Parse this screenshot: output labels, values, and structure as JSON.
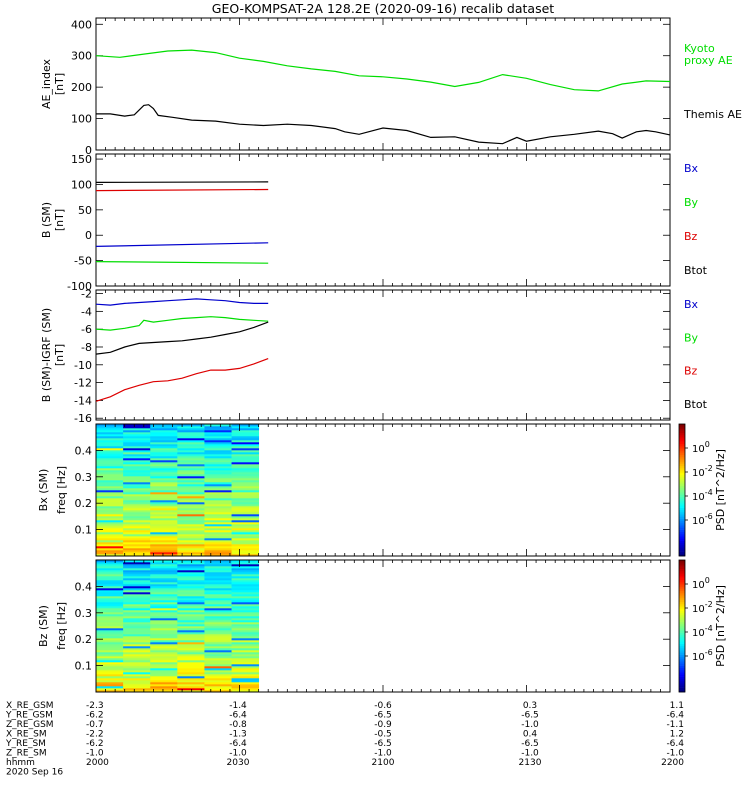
{
  "title": "GEO-KOMPSAT-2A 128.2E (2020-09-16) recalib dataset",
  "time_axis": {
    "tick_labels": [
      "2000",
      "2030",
      "2100",
      "2130",
      "2200"
    ]
  },
  "chart_data": [
    {
      "id": "ae",
      "type": "line",
      "ylabel": [
        "AE_index",
        "[nT]"
      ],
      "ylim": [
        0,
        420
      ],
      "yticks": [
        0,
        100,
        200,
        300,
        400
      ],
      "xlim": [
        "20:00",
        "22:00"
      ],
      "series": [
        {
          "name": "Kyoto proxy AE",
          "label_lines": [
            "Kyoto",
            "proxy AE"
          ],
          "color": "#00dd00",
          "x": [
            0,
            5,
            10,
            15,
            20,
            25,
            30,
            35,
            40,
            45,
            50,
            55,
            60,
            65,
            70,
            75,
            80,
            85,
            90,
            95,
            100,
            105,
            110,
            115,
            120
          ],
          "y": [
            300,
            295,
            305,
            315,
            318,
            310,
            292,
            282,
            268,
            258,
            250,
            236,
            233,
            226,
            216,
            202,
            215,
            240,
            228,
            208,
            192,
            188,
            210,
            220,
            218
          ]
        },
        {
          "name": "Themis AE",
          "label_lines": [
            "Themis AE"
          ],
          "color": "#000000",
          "x": [
            0,
            3,
            6,
            8,
            10,
            11,
            12,
            13,
            16,
            20,
            25,
            30,
            35,
            40,
            45,
            50,
            52,
            55,
            60,
            65,
            70,
            75,
            80,
            85,
            88,
            90,
            95,
            100,
            105,
            108,
            110,
            113,
            115,
            117,
            120
          ],
          "y": [
            115,
            115,
            108,
            112,
            142,
            144,
            132,
            110,
            104,
            95,
            92,
            82,
            78,
            82,
            78,
            68,
            58,
            50,
            70,
            62,
            40,
            42,
            25,
            20,
            40,
            28,
            42,
            50,
            60,
            52,
            38,
            58,
            62,
            58,
            48
          ]
        }
      ]
    },
    {
      "id": "b_sm",
      "type": "line",
      "ylabel": [
        "B (SM)",
        "[nT]"
      ],
      "ylim": [
        -100,
        160
      ],
      "yticks": [
        -100,
        -50,
        0,
        50,
        100,
        150
      ],
      "xlim": [
        "20:00",
        "22:00"
      ],
      "series": [
        {
          "name": "Bx",
          "color": "#0000cc",
          "x": [
            0,
            36
          ],
          "y": [
            -22,
            -15
          ]
        },
        {
          "name": "By",
          "color": "#00dd00",
          "x": [
            0,
            36
          ],
          "y": [
            -52,
            -55
          ]
        },
        {
          "name": "Bz",
          "color": "#dd0000",
          "x": [
            0,
            36
          ],
          "y": [
            88,
            90
          ]
        },
        {
          "name": "Btot",
          "color": "#000000",
          "x": [
            0,
            36
          ],
          "y": [
            104,
            105
          ]
        }
      ]
    },
    {
      "id": "b_sm_igrf",
      "type": "line",
      "ylabel": [
        "B (SM)-IGRF (SM)",
        "[nT]"
      ],
      "ylim": [
        -16.2,
        -1.6
      ],
      "yticks": [
        -16,
        -14,
        -12,
        -10,
        -8,
        -6,
        -4,
        -2
      ],
      "xlim": [
        "20:00",
        "22:00"
      ],
      "series": [
        {
          "name": "Bx",
          "color": "#0000cc",
          "x": [
            0,
            3,
            6,
            9,
            12,
            15,
            18,
            21,
            24,
            27,
            30,
            33,
            36
          ],
          "y": [
            -3.2,
            -3.3,
            -3.1,
            -3.0,
            -2.9,
            -2.8,
            -2.7,
            -2.6,
            -2.7,
            -2.8,
            -3.0,
            -3.1,
            -3.1
          ]
        },
        {
          "name": "By",
          "color": "#00dd00",
          "x": [
            0,
            3,
            6,
            9,
            10,
            12,
            15,
            18,
            21,
            24,
            27,
            30,
            33,
            36
          ],
          "y": [
            -6.0,
            -6.1,
            -5.9,
            -5.6,
            -5.0,
            -5.2,
            -5.0,
            -4.8,
            -4.7,
            -4.6,
            -4.7,
            -4.9,
            -5.0,
            -5.1
          ]
        },
        {
          "name": "Bz",
          "color": "#dd0000",
          "x": [
            0,
            3,
            6,
            9,
            12,
            15,
            18,
            21,
            24,
            27,
            30,
            33,
            36
          ],
          "y": [
            -14.1,
            -13.6,
            -12.8,
            -12.3,
            -11.9,
            -11.8,
            -11.5,
            -11.0,
            -10.6,
            -10.6,
            -10.4,
            -9.9,
            -9.3
          ]
        },
        {
          "name": "Btot",
          "color": "#000000",
          "x": [
            0,
            3,
            6,
            9,
            12,
            15,
            18,
            21,
            24,
            27,
            30,
            33,
            36
          ],
          "y": [
            -8.8,
            -8.6,
            -8.0,
            -7.6,
            -7.5,
            -7.4,
            -7.3,
            -7.1,
            -6.9,
            -6.6,
            -6.3,
            -5.8,
            -5.2
          ]
        }
      ]
    },
    {
      "id": "spec_bx",
      "type": "heatmap",
      "ylabel": [
        "Bx (SM)",
        "freq [Hz]"
      ],
      "ylim": [
        0,
        0.5
      ],
      "yticks": [
        0.1,
        0.2,
        0.3,
        0.4
      ],
      "xlim": [
        "20:00",
        "22:00"
      ],
      "data_extent_minutes": [
        0,
        34
      ],
      "colorbar": {
        "label": "PSD [nT^2/Hz]",
        "ticks": [
          0,
          -2,
          -4,
          -6
        ]
      }
    },
    {
      "id": "spec_bz",
      "type": "heatmap",
      "ylabel": [
        "Bz (SM)",
        "freq [Hz]"
      ],
      "ylim": [
        0,
        0.5
      ],
      "yticks": [
        0.1,
        0.2,
        0.3,
        0.4
      ],
      "xlim": [
        "20:00",
        "22:00"
      ],
      "data_extent_minutes": [
        0,
        34
      ],
      "colorbar": {
        "label": "PSD [nT^2/Hz]",
        "ticks": [
          0,
          -2,
          -4,
          -6
        ]
      }
    }
  ],
  "ephemeris": {
    "rows": [
      {
        "label": "X_RE_GSM",
        "values": [
          "-2.3",
          "-1.4",
          "-0.6",
          "0.3",
          "1.1"
        ]
      },
      {
        "label": "Y_RE_GSM",
        "values": [
          "-6.2",
          "-6.4",
          "-6.5",
          "-6.5",
          "-6.4"
        ]
      },
      {
        "label": "Z_RE_GSM",
        "values": [
          "-0.7",
          "-0.8",
          "-0.9",
          "-1.0",
          "-1.1"
        ]
      },
      {
        "label": "X_RE_SM",
        "values": [
          "-2.2",
          "-1.3",
          "-0.5",
          "0.4",
          "1.2"
        ]
      },
      {
        "label": "Y_RE_SM",
        "values": [
          "-6.2",
          "-6.4",
          "-6.5",
          "-6.5",
          "-6.4"
        ]
      },
      {
        "label": "Z_RE_SM",
        "values": [
          "-1.0",
          "-1.0",
          "-1.0",
          "-1.0",
          "-1.0"
        ]
      },
      {
        "label": "hhmm",
        "values": [
          "2000",
          "2030",
          "2100",
          "2130",
          "2200"
        ]
      }
    ],
    "date": "2020 Sep 16"
  }
}
